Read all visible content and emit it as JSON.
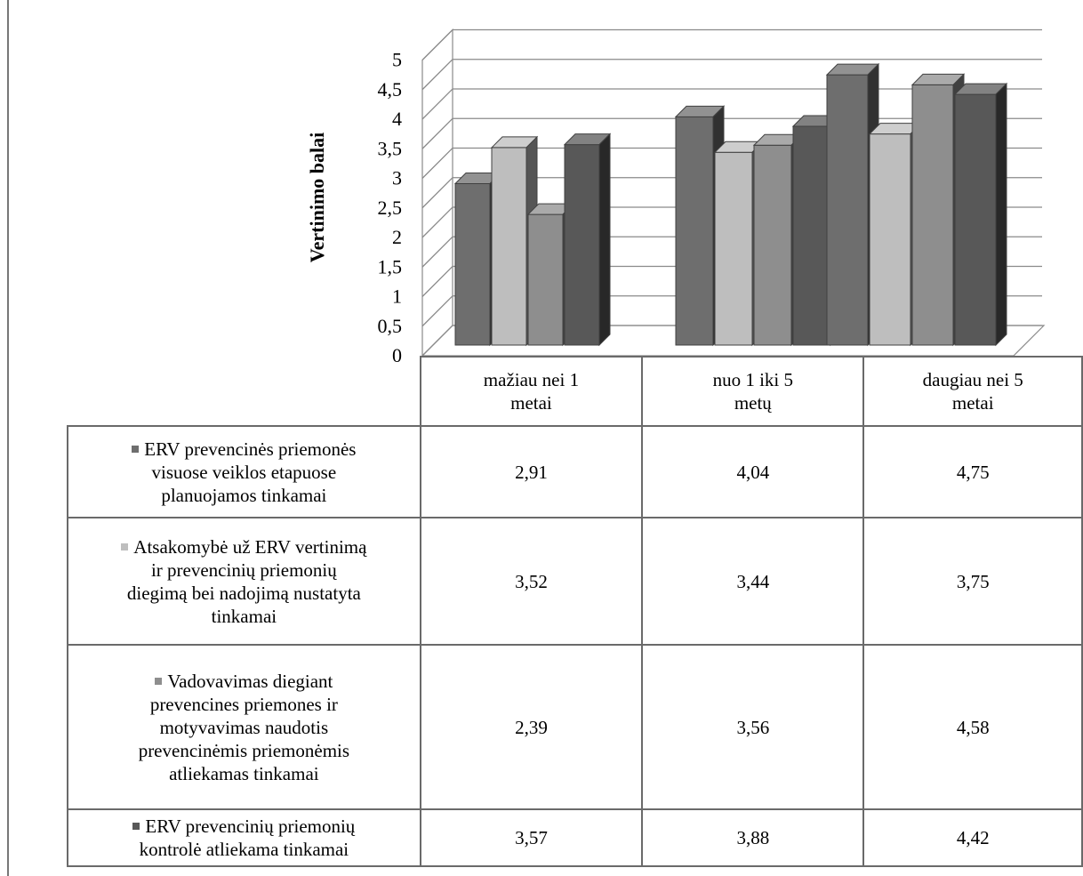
{
  "chart_data": {
    "type": "bar",
    "ylabel": "Vertinimo balai",
    "ylim": [
      0,
      5
    ],
    "yticks": [
      "0",
      "0,5",
      "1",
      "1,5",
      "2",
      "2,5",
      "3",
      "3,5",
      "4",
      "4,5",
      "5"
    ],
    "categories": [
      "mažiau nei 1 metai",
      "nuo 1 iki 5 metų",
      "daugiau nei 5 metai"
    ],
    "category_lines": [
      [
        "mažiau nei 1",
        "metai"
      ],
      [
        "nuo 1 iki 5",
        "metų"
      ],
      [
        "daugiau nei 5",
        "metai"
      ]
    ],
    "series": [
      {
        "name": "ERV prevencinės priemonės visuose veiklos etapuose planuojamos tinkamai",
        "lines": [
          "ERV prevencinės priemonės",
          "visuose veiklos etapuose",
          "planuojamos tinkamai"
        ],
        "values": [
          2.91,
          4.04,
          4.75
        ],
        "labels": [
          "2,91",
          "4,04",
          "4,75"
        ],
        "color": "#6e6e6e"
      },
      {
        "name": "Atsakomybė už ERV vertinimą ir prevencinių priemonių diegimą bei nadojimą nustatyta tinkamai",
        "lines": [
          "Atsakomybė už ERV vertinimą",
          "ir prevencinių priemonių",
          "diegimą bei nadojimą nustatyta",
          "tinkamai"
        ],
        "values": [
          3.52,
          3.44,
          3.75
        ],
        "labels": [
          "3,52",
          "3,44",
          "3,75"
        ],
        "color": "#bebebe"
      },
      {
        "name": "Vadovavimas diegiant prevencines priemones ir motyvavimas naudotis prevencinėmis priemonėmis atliekamas tinkamai",
        "lines": [
          "Vadovavimas diegiant",
          "prevencines priemones ir",
          "motyvavimas naudotis",
          "prevencinėmis priemonėmis",
          "atliekamas tinkamai"
        ],
        "values": [
          2.39,
          3.56,
          4.58
        ],
        "labels": [
          "2,39",
          "3,56",
          "4,58"
        ],
        "color": "#8e8e8e"
      },
      {
        "name": "ERV prevencinių priemonių kontrolė atliekama tinkamai",
        "lines": [
          "ERV prevencinių priemonių",
          "kontrolė atliekama tinkamai"
        ],
        "values": [
          3.57,
          3.88,
          4.42
        ],
        "labels": [
          "3,57",
          "3,88",
          "4,42"
        ],
        "color": "#585858"
      }
    ],
    "grid": true,
    "legend": "data-table"
  }
}
